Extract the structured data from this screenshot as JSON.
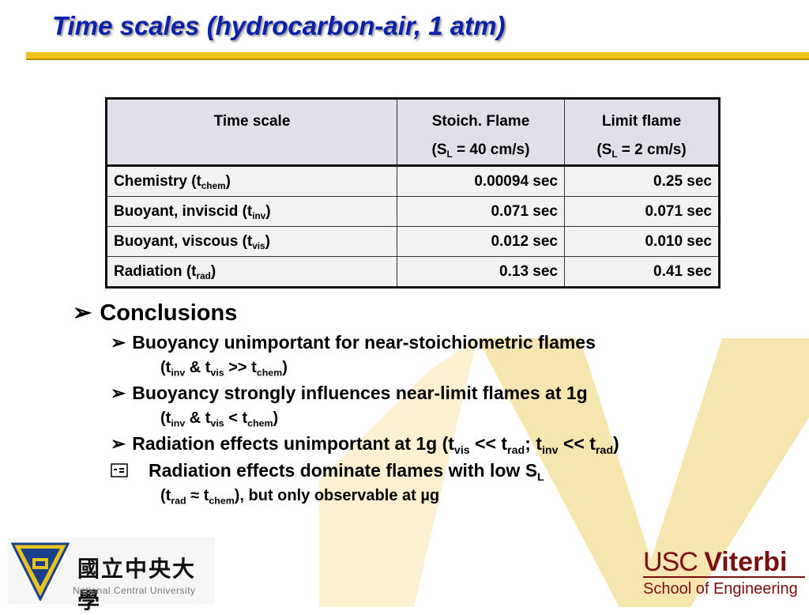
{
  "title": "Time scales (hydrocarbon-air, 1 atm)",
  "table": {
    "headers": {
      "col1": "Time scale",
      "col2_line1": "Stoich. Flame",
      "col2_pre": "(S",
      "col2_sub": "L",
      "col2_post": " = 40 cm/s)",
      "col3_line1": "Limit flame",
      "col3_pre": "(S",
      "col3_sub": "L",
      "col3_post": " = 2 cm/s)"
    },
    "rows": [
      {
        "label": "Chemistry (t",
        "sub": "chem",
        "close": ")",
        "stoich": "0.00094 sec",
        "limit": "0.25 sec"
      },
      {
        "label": "Buoyant, inviscid (t",
        "sub": "inv",
        "close": ")",
        "stoich": "0.071 sec",
        "limit": "0.071 sec"
      },
      {
        "label": "Buoyant, viscous (t",
        "sub": "vis",
        "close": ")",
        "stoich": "0.012 sec",
        "limit": "0.010 sec"
      },
      {
        "label": "Radiation (t",
        "sub": "rad",
        "close": ")",
        "stoich": "0.13 sec",
        "limit": "0.41 sec"
      }
    ]
  },
  "bullets": {
    "arrow": "➢",
    "conclusions": "Conclusions",
    "b1": "Buoyancy unimportant for near-stoichiometric flames",
    "b1_sub": {
      "t1": "(t",
      "s1": "inv",
      "t2": " & t",
      "s2": "vis",
      "t3": " >> t",
      "s3": "chem",
      "t4": ")"
    },
    "b2": "Buoyancy strongly influences near-limit flames at 1g",
    "b2_sub": {
      "t1": "(t",
      "s1": "inv",
      "t2": " & t",
      "s2": "vis",
      "t3": " < t",
      "s3": "chem",
      "t4": ")"
    },
    "b3": {
      "t1": "Radiation effects unimportant at 1g (t",
      "s1": "vis",
      "t2": " << t",
      "s2": "rad",
      "t3": "; t",
      "s3": "inv",
      "t4": " << t",
      "s4": "rad",
      "t5": ")"
    },
    "b4": {
      "t1": "Radiation effects dominate flames with low S",
      "s1": "L"
    },
    "b4_sub": {
      "t1": "(t",
      "s1": "rad",
      "t2": " ≈ t",
      "s2": "chem",
      "t3": "), but only observable at µg"
    }
  },
  "logos": {
    "ncu_chinese": "國立中央大學",
    "ncu_english": "National Central University",
    "usc_part1": "USC ",
    "usc_part2": "Viterbi",
    "usc_school": "School of Engineering"
  },
  "colors": {
    "title_blue": "#0b21a8",
    "rule_gold": "#f2c21a",
    "usc_cardinal": "#7a0e10",
    "watermark_gold": "#f8e6b0"
  }
}
